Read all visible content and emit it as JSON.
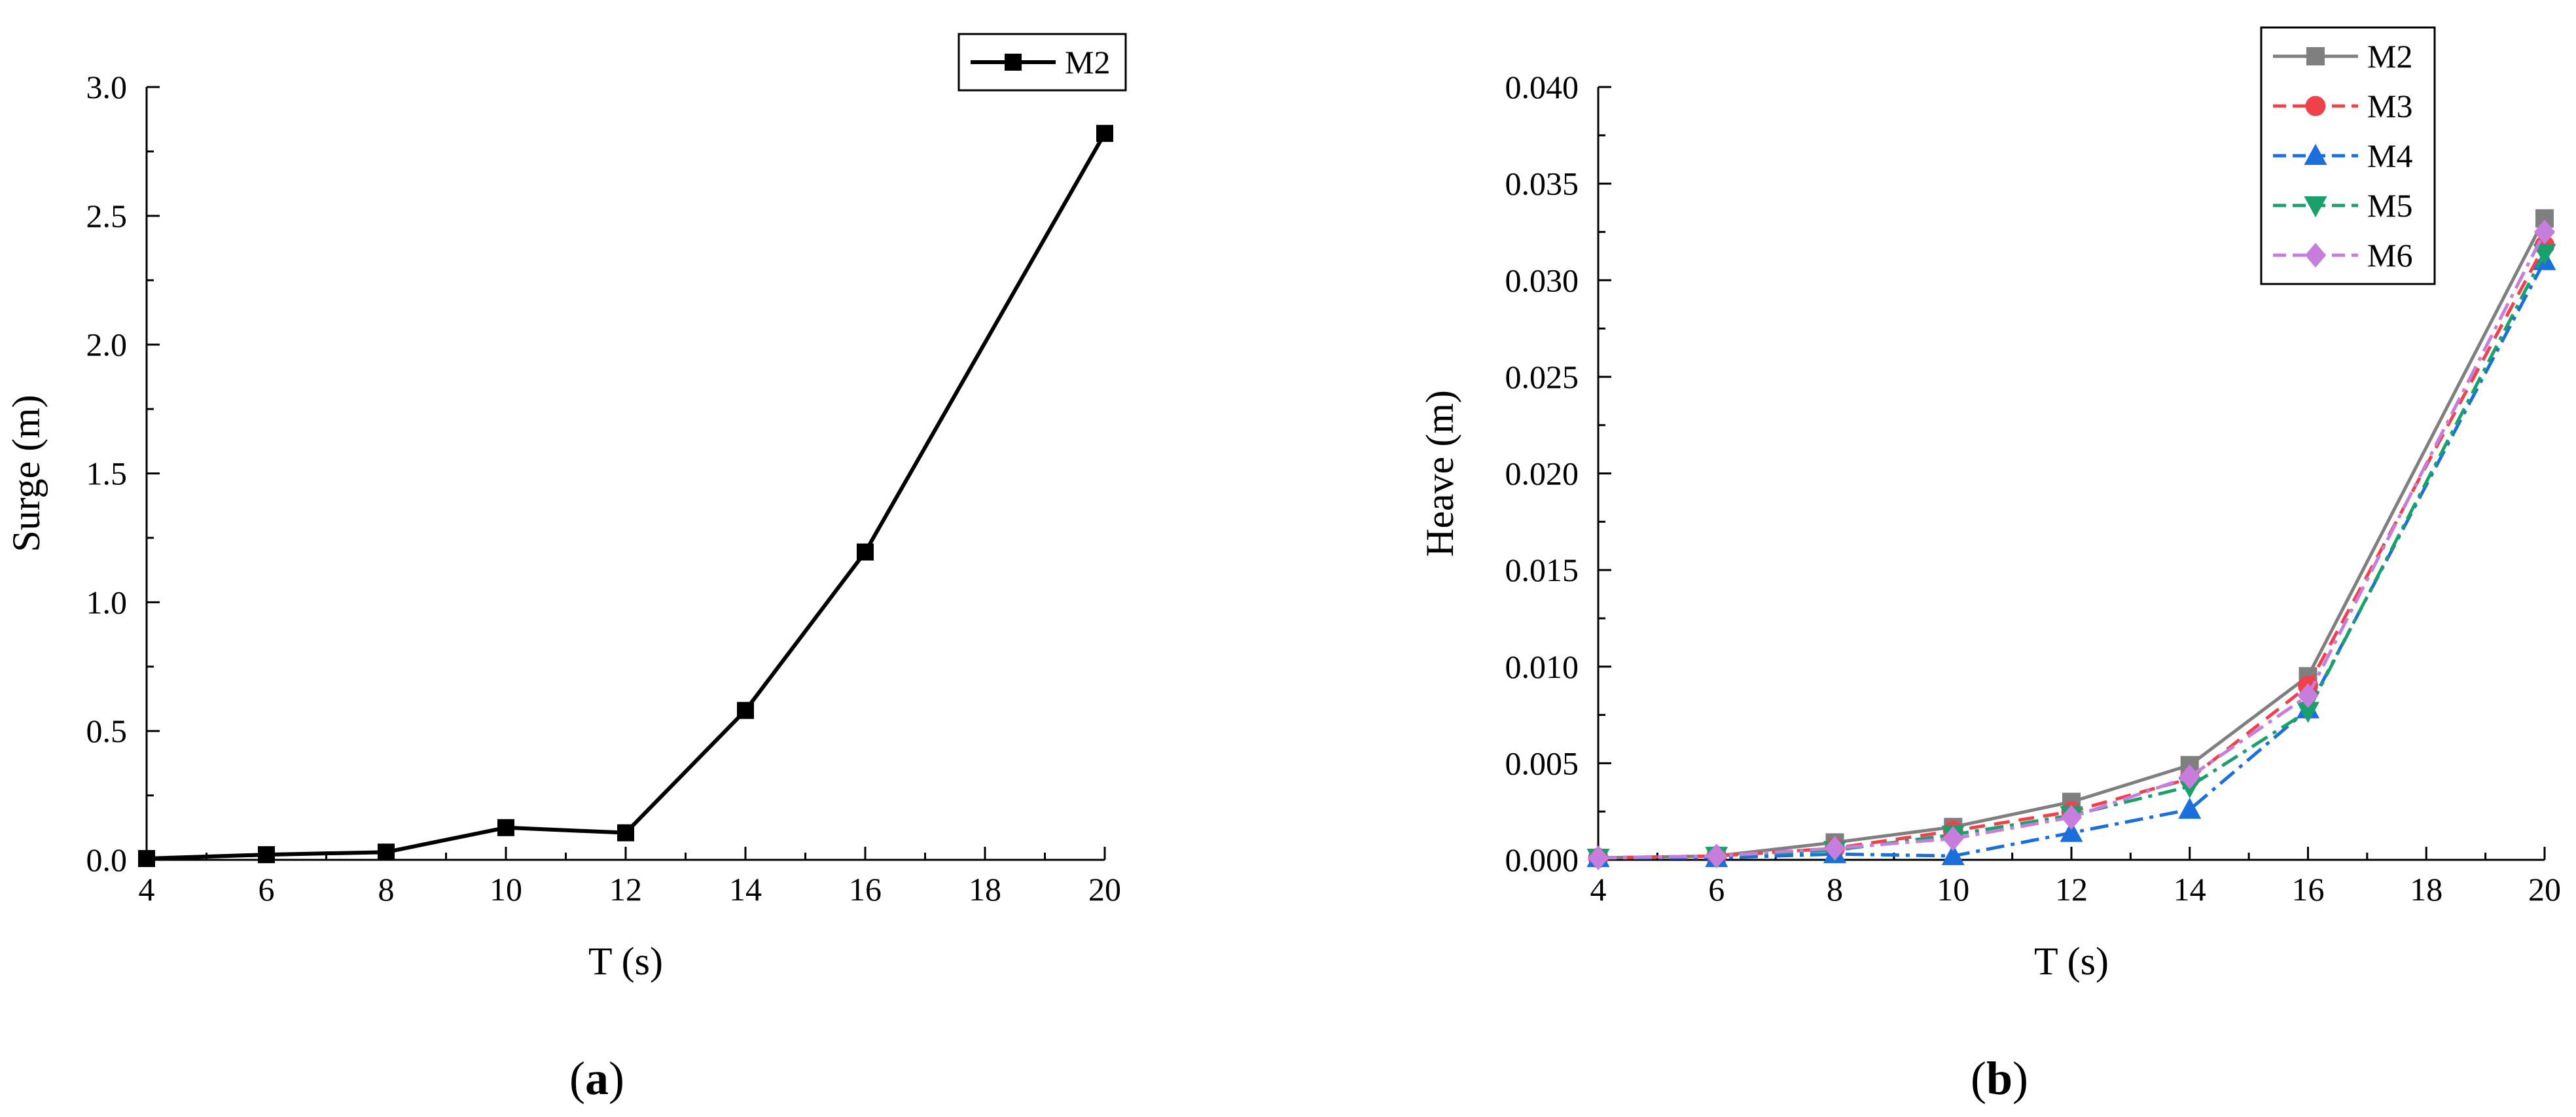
{
  "panels": {
    "a": {
      "label_open": "(",
      "label_letter": "a",
      "label_close": ")"
    },
    "b": {
      "label_open": "(",
      "label_letter": "b",
      "label_close": ")"
    }
  },
  "chart_data": [
    {
      "type": "line",
      "xlabel": "T (s)",
      "ylabel": "Surge (m)",
      "xlim": [
        4,
        20
      ],
      "ylim": [
        0,
        3.0
      ],
      "xticks": [
        "4",
        "6",
        "8",
        "10",
        "12",
        "14",
        "16",
        "18",
        "20"
      ],
      "yticks": [
        "0.0",
        "0.5",
        "1.0",
        "1.5",
        "2.0",
        "2.5",
        "3.0"
      ],
      "legend_position": "top-right",
      "grid": false,
      "x": [
        4,
        6,
        8,
        10,
        12,
        14,
        16,
        20
      ],
      "series": [
        {
          "name": "M2",
          "color": "#000000",
          "marker": "square",
          "dash": "solid",
          "values": [
            0.005,
            0.02,
            0.03,
            0.125,
            0.105,
            0.58,
            1.195,
            2.82
          ]
        }
      ]
    },
    {
      "type": "line",
      "xlabel": "T (s)",
      "ylabel": "Heave (m)",
      "xlim": [
        4,
        20
      ],
      "ylim": [
        0,
        0.04
      ],
      "xticks": [
        "4",
        "6",
        "8",
        "10",
        "12",
        "14",
        "16",
        "18",
        "20"
      ],
      "yticks": [
        "0.000",
        "0.005",
        "0.010",
        "0.015",
        "0.020",
        "0.025",
        "0.030",
        "0.035",
        "0.040"
      ],
      "legend_position": "top-right",
      "grid": false,
      "x": [
        4,
        6,
        8,
        10,
        12,
        14,
        16,
        20
      ],
      "series": [
        {
          "name": "M2",
          "color": "#7f7f7f",
          "marker": "square",
          "dash": "solid",
          "values": [
            0.0001,
            0.0002,
            0.0009,
            0.0017,
            0.003,
            0.0049,
            0.0095,
            0.0332
          ]
        },
        {
          "name": "M3",
          "color": "#f0404a",
          "marker": "circle",
          "dash": "dash",
          "values": [
            0.0001,
            0.0002,
            0.0006,
            0.0015,
            0.0025,
            0.0042,
            0.009,
            0.0318
          ]
        },
        {
          "name": "M4",
          "color": "#1a6fdd",
          "marker": "triangle-up",
          "dash": "dashdot",
          "values": [
            0.0001,
            0.0001,
            0.0003,
            0.0002,
            0.0014,
            0.0026,
            0.0078,
            0.031
          ]
        },
        {
          "name": "M5",
          "color": "#1aa06a",
          "marker": "triangle-down",
          "dash": "dashdot",
          "values": [
            0.0001,
            0.0002,
            0.0005,
            0.0013,
            0.0023,
            0.0038,
            0.0077,
            0.0314
          ]
        },
        {
          "name": "M6",
          "color": "#c77ddb",
          "marker": "diamond",
          "dash": "dashdot",
          "values": [
            0.0001,
            0.0002,
            0.0006,
            0.0011,
            0.0022,
            0.0043,
            0.0085,
            0.0325
          ]
        }
      ]
    }
  ]
}
